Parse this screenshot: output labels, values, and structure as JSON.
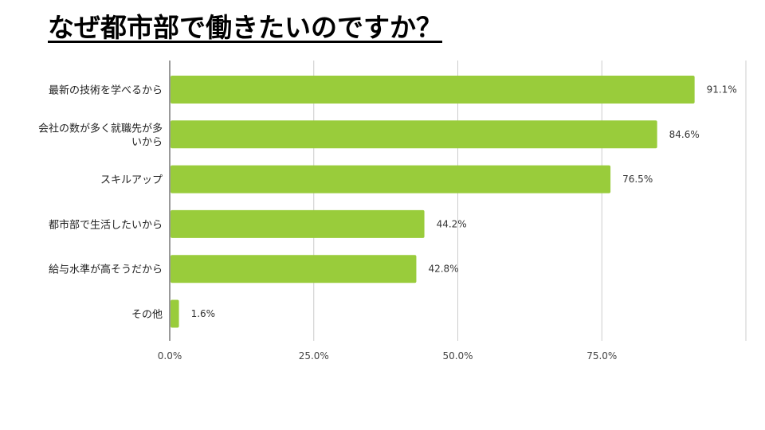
{
  "title": "なぜ都市部で働きたいのですか？",
  "chart_data": {
    "type": "bar",
    "orientation": "horizontal",
    "title": "",
    "xlabel": "",
    "ylabel": "",
    "categories": [
      [
        "最新の技術を学べるから"
      ],
      [
        "会社の数が多く就職先が多",
        "いから"
      ],
      [
        "スキルアップ"
      ],
      [
        "都市部で生活したいから"
      ],
      [
        "給与水準が高そうだから"
      ],
      [
        "その他"
      ]
    ],
    "values": [
      91.1,
      84.6,
      76.5,
      44.2,
      42.8,
      1.6
    ],
    "value_labels": [
      "91.1%",
      "84.6%",
      "76.5%",
      "44.2%",
      "42.8%",
      "1.6%"
    ],
    "xlim": [
      0,
      100
    ],
    "x_ticks": [
      0,
      25,
      50,
      75,
      100
    ],
    "x_tick_labels": [
      "0.0%",
      "25.0%",
      "50.0%",
      "75.0%",
      ""
    ],
    "bar_color": "#99cc3b",
    "grid": true
  }
}
